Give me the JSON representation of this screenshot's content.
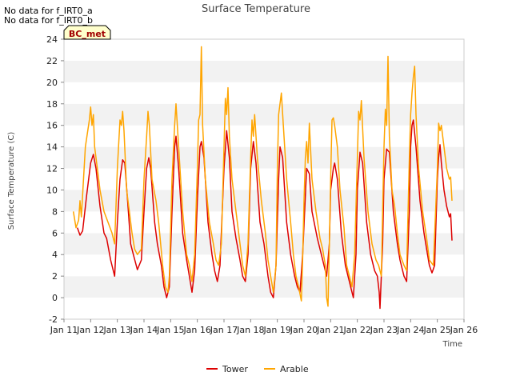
{
  "chart_data": {
    "type": "line",
    "title": "Surface Temperature",
    "xlabel": "Time",
    "ylabel": "Surface Temperature (C)",
    "no_data_notes": [
      "No data for f_IRT0_a",
      "No data for f_IRT0_b"
    ],
    "badge": "BC_met",
    "xlim": [
      0,
      15
    ],
    "ylim": [
      -2,
      24
    ],
    "x_ticks": [
      {
        "v": 0,
        "label": "Jan 11"
      },
      {
        "v": 1,
        "label": "Jan 12"
      },
      {
        "v": 2,
        "label": "Jan 13"
      },
      {
        "v": 3,
        "label": "Jan 14"
      },
      {
        "v": 4,
        "label": "Jan 15"
      },
      {
        "v": 5,
        "label": "Jan 16"
      },
      {
        "v": 6,
        "label": "Jan 17"
      },
      {
        "v": 7,
        "label": "Jan 18"
      },
      {
        "v": 8,
        "label": "Jan 19"
      },
      {
        "v": 9,
        "label": "Jan 20"
      },
      {
        "v": 10,
        "label": "Jan 21"
      },
      {
        "v": 11,
        "label": "Jan 22"
      },
      {
        "v": 12,
        "label": "Jan 23"
      },
      {
        "v": 13,
        "label": "Jan 24"
      },
      {
        "v": 14,
        "label": "Jan 25"
      },
      {
        "v": 15,
        "label": "Jan 26"
      }
    ],
    "y_ticks": [
      -2,
      0,
      2,
      4,
      6,
      8,
      10,
      12,
      14,
      16,
      18,
      20,
      22,
      24
    ],
    "grid": "horizontal alternating bands",
    "legend_position": "bottom-center",
    "series": [
      {
        "name": "Tower",
        "color": "#dd0000",
        "points": [
          [
            0.5,
            6.5
          ],
          [
            0.6,
            5.8
          ],
          [
            0.7,
            6.2
          ],
          [
            0.85,
            9.5
          ],
          [
            1.0,
            12.5
          ],
          [
            1.1,
            13.3
          ],
          [
            1.2,
            12.0
          ],
          [
            1.35,
            8.5
          ],
          [
            1.5,
            6.0
          ],
          [
            1.6,
            5.5
          ],
          [
            1.75,
            3.5
          ],
          [
            1.9,
            2.0
          ],
          [
            2.0,
            7.0
          ],
          [
            2.1,
            11.0
          ],
          [
            2.2,
            12.8
          ],
          [
            2.28,
            12.5
          ],
          [
            2.4,
            8.5
          ],
          [
            2.5,
            5.0
          ],
          [
            2.6,
            4.0
          ],
          [
            2.75,
            2.6
          ],
          [
            2.9,
            3.5
          ],
          [
            3.0,
            8.0
          ],
          [
            3.1,
            12.0
          ],
          [
            3.18,
            13.0
          ],
          [
            3.25,
            12.0
          ],
          [
            3.4,
            7.0
          ],
          [
            3.5,
            5.0
          ],
          [
            3.65,
            3.0
          ],
          [
            3.75,
            1.0
          ],
          [
            3.85,
            0.0
          ],
          [
            3.95,
            1.0
          ],
          [
            4.05,
            8.0
          ],
          [
            4.15,
            14.0
          ],
          [
            4.2,
            15.0
          ],
          [
            4.3,
            12.0
          ],
          [
            4.45,
            6.0
          ],
          [
            4.6,
            3.5
          ],
          [
            4.7,
            2.0
          ],
          [
            4.8,
            0.5
          ],
          [
            4.9,
            2.5
          ],
          [
            5.0,
            9.0
          ],
          [
            5.1,
            14.0
          ],
          [
            5.15,
            14.5
          ],
          [
            5.25,
            13.0
          ],
          [
            5.4,
            7.0
          ],
          [
            5.55,
            4.0
          ],
          [
            5.65,
            2.5
          ],
          [
            5.75,
            1.5
          ],
          [
            5.85,
            3.0
          ],
          [
            6.0,
            12.0
          ],
          [
            6.1,
            15.5
          ],
          [
            6.2,
            13.0
          ],
          [
            6.3,
            8.0
          ],
          [
            6.45,
            5.5
          ],
          [
            6.6,
            3.5
          ],
          [
            6.7,
            2.0
          ],
          [
            6.8,
            1.5
          ],
          [
            6.9,
            4.0
          ],
          [
            7.0,
            12.0
          ],
          [
            7.1,
            14.5
          ],
          [
            7.2,
            12.5
          ],
          [
            7.35,
            7.0
          ],
          [
            7.5,
            5.0
          ],
          [
            7.65,
            2.0
          ],
          [
            7.75,
            0.5
          ],
          [
            7.85,
            0.0
          ],
          [
            7.95,
            3.0
          ],
          [
            8.05,
            11.0
          ],
          [
            8.1,
            14.0
          ],
          [
            8.2,
            13.0
          ],
          [
            8.35,
            7.0
          ],
          [
            8.5,
            4.0
          ],
          [
            8.65,
            2.0
          ],
          [
            8.75,
            1.0
          ],
          [
            8.85,
            0.5
          ],
          [
            8.95,
            4.0
          ],
          [
            9.1,
            12.0
          ],
          [
            9.2,
            11.5
          ],
          [
            9.3,
            8.0
          ],
          [
            9.5,
            5.5
          ],
          [
            9.65,
            4.0
          ],
          [
            9.75,
            3.0
          ],
          [
            9.85,
            2.0
          ],
          [
            9.95,
            5.0
          ],
          [
            10.0,
            10.0
          ],
          [
            10.1,
            12.0
          ],
          [
            10.15,
            12.5
          ],
          [
            10.25,
            11.0
          ],
          [
            10.4,
            6.0
          ],
          [
            10.55,
            3.0
          ],
          [
            10.7,
            1.5
          ],
          [
            10.8,
            0.5
          ],
          [
            10.85,
            0.0
          ],
          [
            10.95,
            4.0
          ],
          [
            11.0,
            10.0
          ],
          [
            11.1,
            13.5
          ],
          [
            11.2,
            12.5
          ],
          [
            11.35,
            7.0
          ],
          [
            11.5,
            4.0
          ],
          [
            11.65,
            2.5
          ],
          [
            11.75,
            2.0
          ],
          [
            11.82,
            0.5
          ],
          [
            11.85,
            -1.0
          ],
          [
            11.95,
            5.0
          ],
          [
            12.0,
            11.0
          ],
          [
            12.1,
            13.8
          ],
          [
            12.2,
            13.5
          ],
          [
            12.35,
            8.0
          ],
          [
            12.5,
            5.0
          ],
          [
            12.6,
            3.5
          ],
          [
            12.75,
            2.0
          ],
          [
            12.85,
            1.5
          ],
          [
            12.95,
            8.0
          ],
          [
            13.0,
            14.0
          ],
          [
            13.05,
            16.0
          ],
          [
            13.1,
            16.5
          ],
          [
            13.2,
            14.0
          ],
          [
            13.35,
            9.0
          ],
          [
            13.5,
            6.0
          ],
          [
            13.6,
            4.5
          ],
          [
            13.7,
            3.0
          ],
          [
            13.8,
            2.3
          ],
          [
            13.9,
            3.0
          ],
          [
            14.0,
            11.0
          ],
          [
            14.05,
            13.0
          ],
          [
            14.1,
            14.2
          ],
          [
            14.15,
            12.5
          ],
          [
            14.25,
            10.0
          ],
          [
            14.35,
            8.5
          ],
          [
            14.45,
            7.5
          ],
          [
            14.5,
            7.8
          ],
          [
            14.55,
            5.3
          ]
        ]
      },
      {
        "name": "Arable",
        "color": "#ffa500",
        "points": [
          [
            0.35,
            8.0
          ],
          [
            0.45,
            6.5
          ],
          [
            0.55,
            7.2
          ],
          [
            0.6,
            9.0
          ],
          [
            0.65,
            7.5
          ],
          [
            0.8,
            14.0
          ],
          [
            0.95,
            16.5
          ],
          [
            1.0,
            17.7
          ],
          [
            1.05,
            16.0
          ],
          [
            1.1,
            17.0
          ],
          [
            1.15,
            14.0
          ],
          [
            1.2,
            13.0
          ],
          [
            1.35,
            10.0
          ],
          [
            1.5,
            8.0
          ],
          [
            1.65,
            7.0
          ],
          [
            1.8,
            6.0
          ],
          [
            1.9,
            5.0
          ],
          [
            2.0,
            12.0
          ],
          [
            2.1,
            16.5
          ],
          [
            2.15,
            16.0
          ],
          [
            2.2,
            17.3
          ],
          [
            2.25,
            15.5
          ],
          [
            2.35,
            10.0
          ],
          [
            2.45,
            8.0
          ],
          [
            2.55,
            6.0
          ],
          [
            2.65,
            4.5
          ],
          [
            2.75,
            4.0
          ],
          [
            2.9,
            4.5
          ],
          [
            3.0,
            11.0
          ],
          [
            3.1,
            15.0
          ],
          [
            3.15,
            17.3
          ],
          [
            3.2,
            16.0
          ],
          [
            3.3,
            11.0
          ],
          [
            3.45,
            9.0
          ],
          [
            3.55,
            7.0
          ],
          [
            3.7,
            3.0
          ],
          [
            3.8,
            1.0
          ],
          [
            3.9,
            0.5
          ],
          [
            3.95,
            2.0
          ],
          [
            4.05,
            11.0
          ],
          [
            4.15,
            16.0
          ],
          [
            4.2,
            18.0
          ],
          [
            4.3,
            14.0
          ],
          [
            4.45,
            8.0
          ],
          [
            4.6,
            4.0
          ],
          [
            4.7,
            3.0
          ],
          [
            4.8,
            1.5
          ],
          [
            4.9,
            4.0
          ],
          [
            5.0,
            12.0
          ],
          [
            5.05,
            16.5
          ],
          [
            5.1,
            17.0
          ],
          [
            5.15,
            23.3
          ],
          [
            5.2,
            16.0
          ],
          [
            5.3,
            11.0
          ],
          [
            5.45,
            7.0
          ],
          [
            5.6,
            5.0
          ],
          [
            5.7,
            3.5
          ],
          [
            5.8,
            3.0
          ],
          [
            5.9,
            5.0
          ],
          [
            6.0,
            14.0
          ],
          [
            6.05,
            18.5
          ],
          [
            6.1,
            17.0
          ],
          [
            6.15,
            19.5
          ],
          [
            6.2,
            15.0
          ],
          [
            6.3,
            11.0
          ],
          [
            6.45,
            8.0
          ],
          [
            6.6,
            5.0
          ],
          [
            6.7,
            3.0
          ],
          [
            6.8,
            2.0
          ],
          [
            6.9,
            5.0
          ],
          [
            7.0,
            13.0
          ],
          [
            7.05,
            16.5
          ],
          [
            7.1,
            15.0
          ],
          [
            7.15,
            17.0
          ],
          [
            7.25,
            13.0
          ],
          [
            7.4,
            9.0
          ],
          [
            7.55,
            6.0
          ],
          [
            7.65,
            3.5
          ],
          [
            7.75,
            2.0
          ],
          [
            7.85,
            0.5
          ],
          [
            7.95,
            3.0
          ],
          [
            8.0,
            12.0
          ],
          [
            8.05,
            17.0
          ],
          [
            8.1,
            18.0
          ],
          [
            8.15,
            19.0
          ],
          [
            8.25,
            15.0
          ],
          [
            8.35,
            11.0
          ],
          [
            8.5,
            7.0
          ],
          [
            8.6,
            4.0
          ],
          [
            8.7,
            2.0
          ],
          [
            8.8,
            1.0
          ],
          [
            8.9,
            -0.3
          ],
          [
            8.95,
            3.5
          ],
          [
            9.0,
            9.0
          ],
          [
            9.05,
            13.0
          ],
          [
            9.1,
            14.5
          ],
          [
            9.15,
            12.5
          ],
          [
            9.2,
            16.2
          ],
          [
            9.3,
            11.0
          ],
          [
            9.45,
            8.0
          ],
          [
            9.6,
            5.5
          ],
          [
            9.7,
            4.5
          ],
          [
            9.8,
            3.0
          ],
          [
            9.85,
            0.0
          ],
          [
            9.9,
            -0.8
          ],
          [
            9.95,
            5.0
          ],
          [
            10.0,
            11.0
          ],
          [
            10.05,
            16.5
          ],
          [
            10.1,
            16.7
          ],
          [
            10.15,
            16.0
          ],
          [
            10.25,
            14.0
          ],
          [
            10.35,
            10.0
          ],
          [
            10.5,
            6.5
          ],
          [
            10.6,
            3.0
          ],
          [
            10.7,
            2.0
          ],
          [
            10.8,
            1.0
          ],
          [
            10.9,
            4.0
          ],
          [
            11.0,
            13.0
          ],
          [
            11.05,
            17.3
          ],
          [
            11.1,
            16.5
          ],
          [
            11.15,
            18.3
          ],
          [
            11.25,
            13.0
          ],
          [
            11.4,
            8.0
          ],
          [
            11.55,
            5.0
          ],
          [
            11.7,
            3.5
          ],
          [
            11.8,
            3.0
          ],
          [
            11.9,
            2.0
          ],
          [
            11.95,
            8.0
          ],
          [
            12.0,
            14.0
          ],
          [
            12.05,
            17.5
          ],
          [
            12.1,
            16.0
          ],
          [
            12.15,
            22.4
          ],
          [
            12.2,
            15.0
          ],
          [
            12.3,
            10.0
          ],
          [
            12.4,
            8.5
          ],
          [
            12.5,
            6.0
          ],
          [
            12.6,
            4.0
          ],
          [
            12.75,
            3.0
          ],
          [
            12.85,
            2.5
          ],
          [
            12.95,
            13.0
          ],
          [
            13.0,
            17.0
          ],
          [
            13.05,
            19.0
          ],
          [
            13.1,
            20.5
          ],
          [
            13.15,
            21.5
          ],
          [
            13.2,
            17.0
          ],
          [
            13.3,
            12.0
          ],
          [
            13.45,
            8.0
          ],
          [
            13.6,
            5.5
          ],
          [
            13.7,
            3.5
          ],
          [
            13.85,
            3.0
          ],
          [
            14.0,
            12.0
          ],
          [
            14.05,
            16.2
          ],
          [
            14.1,
            15.5
          ],
          [
            14.15,
            16.0
          ],
          [
            14.25,
            14.0
          ],
          [
            14.35,
            12.0
          ],
          [
            14.45,
            11.0
          ],
          [
            14.5,
            11.2
          ],
          [
            14.55,
            9.0
          ]
        ]
      }
    ]
  }
}
